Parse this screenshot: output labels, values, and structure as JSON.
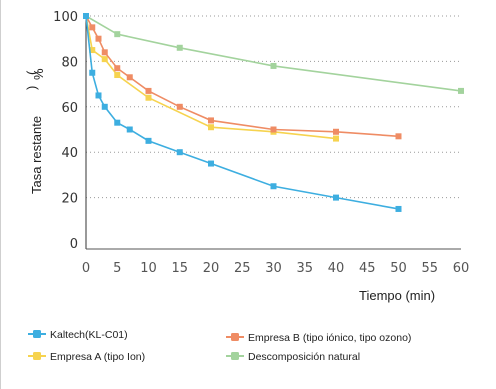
{
  "chart_data": {
    "type": "line",
    "xlabel": "Tiempo (min)",
    "ylabel": "Tasa restante",
    "ylabel_unit": "%",
    "xlim": [
      0,
      60
    ],
    "ylim": [
      0,
      100
    ],
    "xticks": [
      0,
      5,
      10,
      15,
      20,
      25,
      30,
      35,
      40,
      45,
      50,
      55,
      60
    ],
    "yticks": [
      0,
      20,
      40,
      60,
      80,
      100
    ],
    "grid": "horizontal dotted",
    "legend_position": "bottom",
    "series": [
      {
        "name": "Kaltech(KL-C01)",
        "color": "#3daee0",
        "points": [
          [
            0,
            100
          ],
          [
            1,
            75
          ],
          [
            2,
            65
          ],
          [
            3,
            60
          ],
          [
            5,
            53
          ],
          [
            7,
            50
          ],
          [
            10,
            45
          ],
          [
            15,
            40
          ],
          [
            20,
            35
          ],
          [
            30,
            25
          ],
          [
            40,
            20
          ],
          [
            50,
            15
          ]
        ]
      },
      {
        "name": "Empresa B (tipo iónico, tipo ozono)",
        "color": "#ef8c64",
        "points": [
          [
            0,
            100
          ],
          [
            1,
            95
          ],
          [
            2,
            90
          ],
          [
            3,
            84
          ],
          [
            5,
            77
          ],
          [
            7,
            73
          ],
          [
            10,
            67
          ],
          [
            15,
            60
          ],
          [
            20,
            54
          ],
          [
            30,
            50
          ],
          [
            40,
            49
          ],
          [
            50,
            47
          ]
        ]
      },
      {
        "name": "Empresa A (tipo Ion)",
        "color": "#f6d34f",
        "points": [
          [
            0,
            100
          ],
          [
            1,
            85
          ],
          [
            3,
            81
          ],
          [
            5,
            74
          ],
          [
            10,
            64
          ],
          [
            20,
            51
          ],
          [
            30,
            49
          ],
          [
            40,
            46
          ]
        ]
      },
      {
        "name": "Descomposición natural",
        "color": "#a3d39d",
        "points": [
          [
            0,
            100
          ],
          [
            5,
            92
          ],
          [
            15,
            86
          ],
          [
            30,
            78
          ],
          [
            60,
            67
          ]
        ]
      }
    ]
  }
}
